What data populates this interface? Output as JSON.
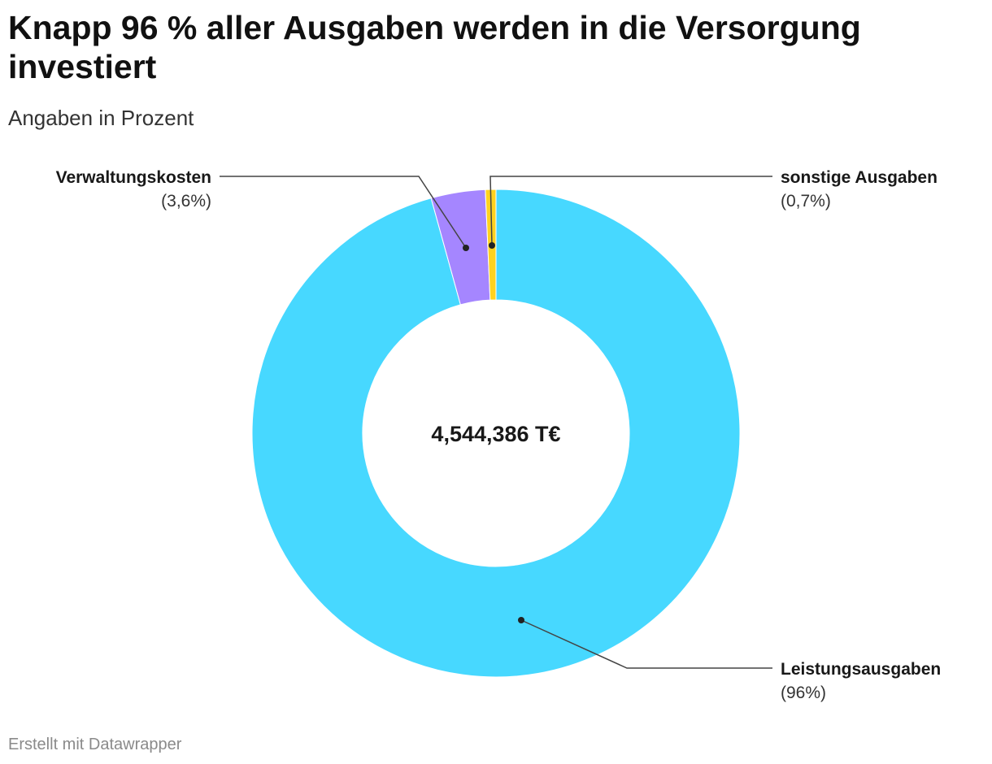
{
  "title": "Knapp 96 % aller Ausgaben werden in die Versorgung investiert",
  "subtitle": "Angaben in Prozent",
  "footer": "Erstellt mit Datawrapper",
  "chart_data": {
    "type": "pie",
    "donut": true,
    "center_label": "4,544,386 T€",
    "slices": [
      {
        "name": "Leistungsausgaben",
        "value": 96,
        "value_label": "(96%)",
        "color": "#47d8ff"
      },
      {
        "name": "Verwaltungskosten",
        "value": 3.6,
        "value_label": "(3,6%)",
        "color": "#a586ff"
      },
      {
        "name": "sonstige Ausgaben",
        "value": 0.7,
        "value_label": "(0,7%)",
        "color": "#ffd21f"
      }
    ]
  }
}
